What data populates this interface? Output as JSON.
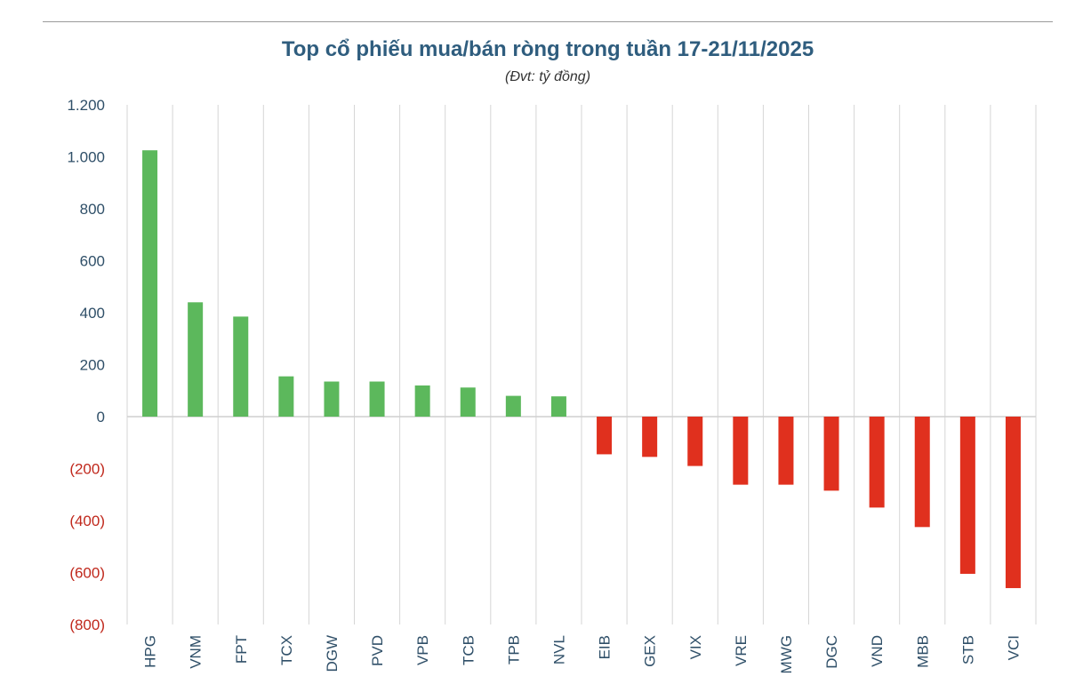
{
  "chart_data": {
    "type": "bar",
    "title": "Top cổ phiếu mua/bán ròng trong tuần 17-21/11/2025",
    "subtitle": "(Đvt: tỷ đồng)",
    "categories": [
      "HPG",
      "VNM",
      "FPT",
      "TCX",
      "DGW",
      "PVD",
      "VPB",
      "TCB",
      "TPB",
      "NVL",
      "EIB",
      "GEX",
      "VIX",
      "VRE",
      "MWG",
      "DGC",
      "VND",
      "MBB",
      "STB",
      "VCI"
    ],
    "values": [
      1025,
      440,
      385,
      155,
      135,
      135,
      120,
      112,
      80,
      78,
      -145,
      -155,
      -190,
      -262,
      -262,
      -285,
      -350,
      -425,
      -605,
      -660
    ],
    "ylim": [
      -800,
      1200
    ],
    "yticks": [
      {
        "value": 1200,
        "label": "1.200"
      },
      {
        "value": 1000,
        "label": "1.000"
      },
      {
        "value": 800,
        "label": "800"
      },
      {
        "value": 600,
        "label": "600"
      },
      {
        "value": 400,
        "label": "400"
      },
      {
        "value": 200,
        "label": "200"
      },
      {
        "value": 0,
        "label": "0"
      },
      {
        "value": -200,
        "label": "(200)"
      },
      {
        "value": -400,
        "label": "(400)"
      },
      {
        "value": -600,
        "label": "(600)"
      },
      {
        "value": -800,
        "label": "(800)"
      }
    ],
    "grid": "vertical",
    "colors": {
      "positive": "#5cb85c",
      "negative": "#e0301e",
      "positive_tick": "#2f4f68",
      "negative_tick": "#c0281c",
      "title": "#2f5d7e",
      "grid": "#d6d6d6",
      "zero_line": "#cfcfcf"
    }
  }
}
